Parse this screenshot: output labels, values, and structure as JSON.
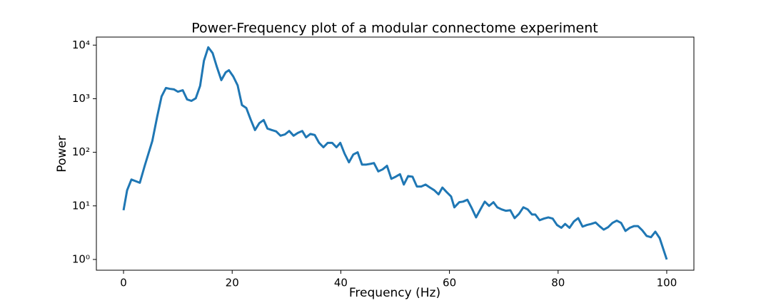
{
  "chart_data": {
    "type": "line",
    "title": "Power-Frequency plot of a modular connectome experiment",
    "xlabel": "Frequency (Hz)",
    "ylabel": "Power",
    "yscale": "log",
    "color": "#1f77b4",
    "x": [
      0,
      0.66,
      1.45,
      2.2,
      3.0,
      3.9,
      5.3,
      6.2,
      7.0,
      7.8,
      8.5,
      9.3,
      10,
      10.9,
      11.7,
      12.5,
      13.3,
      14.1,
      14.8,
      15.6,
      16.4,
      17.2,
      18,
      18.8,
      19.4,
      20.2,
      21,
      21.8,
      22.6,
      23.4,
      24.2,
      25,
      25.8,
      26.5,
      27.3,
      28.1,
      28.9,
      29.7,
      30.5,
      31.3,
      32.1,
      32.9,
      33.6,
      34.4,
      35.2,
      36,
      36.8,
      37.6,
      38.4,
      39.2,
      39.9,
      40.7,
      41.5,
      42.3,
      43.1,
      43.9,
      44.7,
      45.5,
      46.1,
      46.9,
      47.7,
      48.5,
      49.3,
      50.1,
      50.9,
      51.6,
      52.4,
      53.2,
      54,
      54.8,
      55.6,
      56.4,
      57.2,
      58,
      58.7,
      59.5,
      60.3,
      60.9,
      61.8,
      62.5,
      63.3,
      64.1,
      64.9,
      65.7,
      66.5,
      67.3,
      68.1,
      68.8,
      69.6,
      70.4,
      71.2,
      72,
      72.8,
      73.6,
      74.4,
      75.2,
      75.8,
      76.6,
      77.4,
      78.2,
      79,
      79.8,
      80.6,
      81.3,
      82.1,
      82.9,
      83.7,
      84.5,
      85.3,
      86.1,
      86.9,
      87.6,
      88.4,
      89.2,
      90,
      90.8,
      91.6,
      92.4,
      93.2,
      94,
      94.7,
      95.5,
      96.3,
      97.1,
      97.9,
      98.7,
      100
    ],
    "values": [
      8.3,
      19.6,
      31,
      29,
      27,
      56,
      163,
      465,
      1100,
      1585,
      1530,
      1490,
      1350,
      1440,
      970,
      910,
      1020,
      1740,
      5100,
      9100,
      7100,
      3870,
      2220,
      3100,
      3400,
      2600,
      1780,
      760,
      670,
      410,
      260,
      350,
      400,
      277,
      260,
      245,
      204,
      215,
      250,
      204,
      230,
      250,
      190,
      220,
      210,
      150,
      124,
      150,
      150,
      124,
      150,
      94,
      65,
      91,
      100,
      59,
      59,
      61,
      63,
      44,
      48,
      56,
      32,
      35,
      39,
      25,
      36,
      35,
      23,
      23,
      25,
      22,
      19.6,
      16.4,
      22,
      18,
      15,
      9.4,
      11.7,
      12,
      13,
      9.1,
      6.1,
      8.6,
      12,
      10,
      11.7,
      9.4,
      8.6,
      8.1,
      8.3,
      5.9,
      7.1,
      9.4,
      8.6,
      6.9,
      6.9,
      5.4,
      5.8,
      6.1,
      5.8,
      4.4,
      3.9,
      4.6,
      3.9,
      5.1,
      5.9,
      4.1,
      4.4,
      4.6,
      4.9,
      4.2,
      3.6,
      4.0,
      4.8,
      5.3,
      4.8,
      3.4,
      3.9,
      4.2,
      4.2,
      3.5,
      2.75,
      2.6,
      3.3,
      2.5,
      1
    ],
    "xlim": [
      -5,
      105
    ],
    "xticks": [
      0,
      20,
      40,
      60,
      80,
      100
    ],
    "ylim": [
      0.63,
      14125
    ],
    "yticks": [
      {
        "value": 1,
        "label": "10⁰"
      },
      {
        "value": 10,
        "label": "10¹"
      },
      {
        "value": 100,
        "label": "10²"
      },
      {
        "value": 1000,
        "label": "10³"
      },
      {
        "value": 10000,
        "label": "10⁴"
      }
    ]
  }
}
